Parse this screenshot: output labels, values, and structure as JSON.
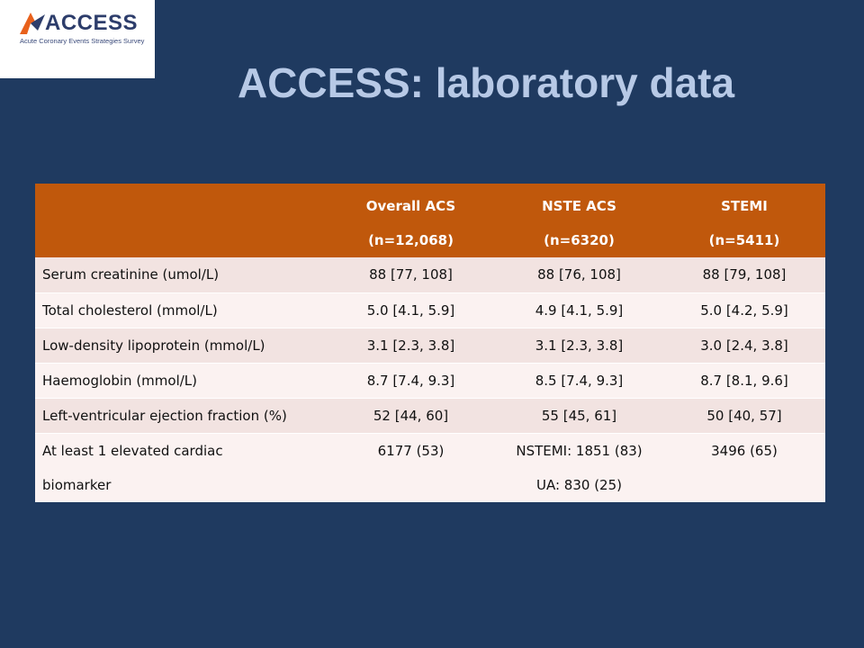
{
  "logo": {
    "word": "ACCESS",
    "tagline": "Acute Coronary Events Strategies Survey",
    "mark_colors": [
      "#e8611c",
      "#2d3d6b"
    ]
  },
  "title": "ACCESS: laboratory data",
  "colors": {
    "background": "#1f3a60",
    "title": "#b7c9e6",
    "header": "#c0580c",
    "row_odd": "#f2e3e1",
    "row_even": "#fbf2f1"
  },
  "table": {
    "headers": [
      {
        "line1": "",
        "line2": ""
      },
      {
        "line1": "Overall ACS",
        "line2": "(n=12,068)"
      },
      {
        "line1": "NSTE ACS",
        "line2": "(n=6320)"
      },
      {
        "line1": "STEMI",
        "line2": "(n=5411)"
      }
    ],
    "rows": [
      {
        "label": "Serum creatinine (umol/L)",
        "overall": "88 [77, 108]",
        "nste": "88 [76, 108]",
        "stemi": "88 [79, 108]"
      },
      {
        "label": "Total cholesterol (mmol/L)",
        "overall": "5.0 [4.1, 5.9]",
        "nste": "4.9 [4.1, 5.9]",
        "stemi": "5.0 [4.2, 5.9]"
      },
      {
        "label": "Low-density lipoprotein (mmol/L)",
        "overall": "3.1 [2.3, 3.8]",
        "nste": "3.1 [2.3, 3.8]",
        "stemi": "3.0 [2.4, 3.8]"
      },
      {
        "label": "Haemoglobin (mmol/L)",
        "overall": "8.7 [7.4, 9.3]",
        "nste": "8.5 [7.4, 9.3]",
        "stemi": "8.7 [8.1, 9.6]"
      },
      {
        "label": "Left-ventricular ejection fraction (%)",
        "overall": "52 [44, 60]",
        "nste": "55 [45, 61]",
        "stemi": "50 [40, 57]"
      }
    ],
    "last_row": {
      "label_line1": "At least 1 elevated cardiac",
      "label_line2": "biomarker",
      "overall": "6177 (53)",
      "nste_line1": "NSTEMI: 1851 (83)",
      "nste_line2": "UA: 830 (25)",
      "stemi": "3496 (65)"
    }
  }
}
